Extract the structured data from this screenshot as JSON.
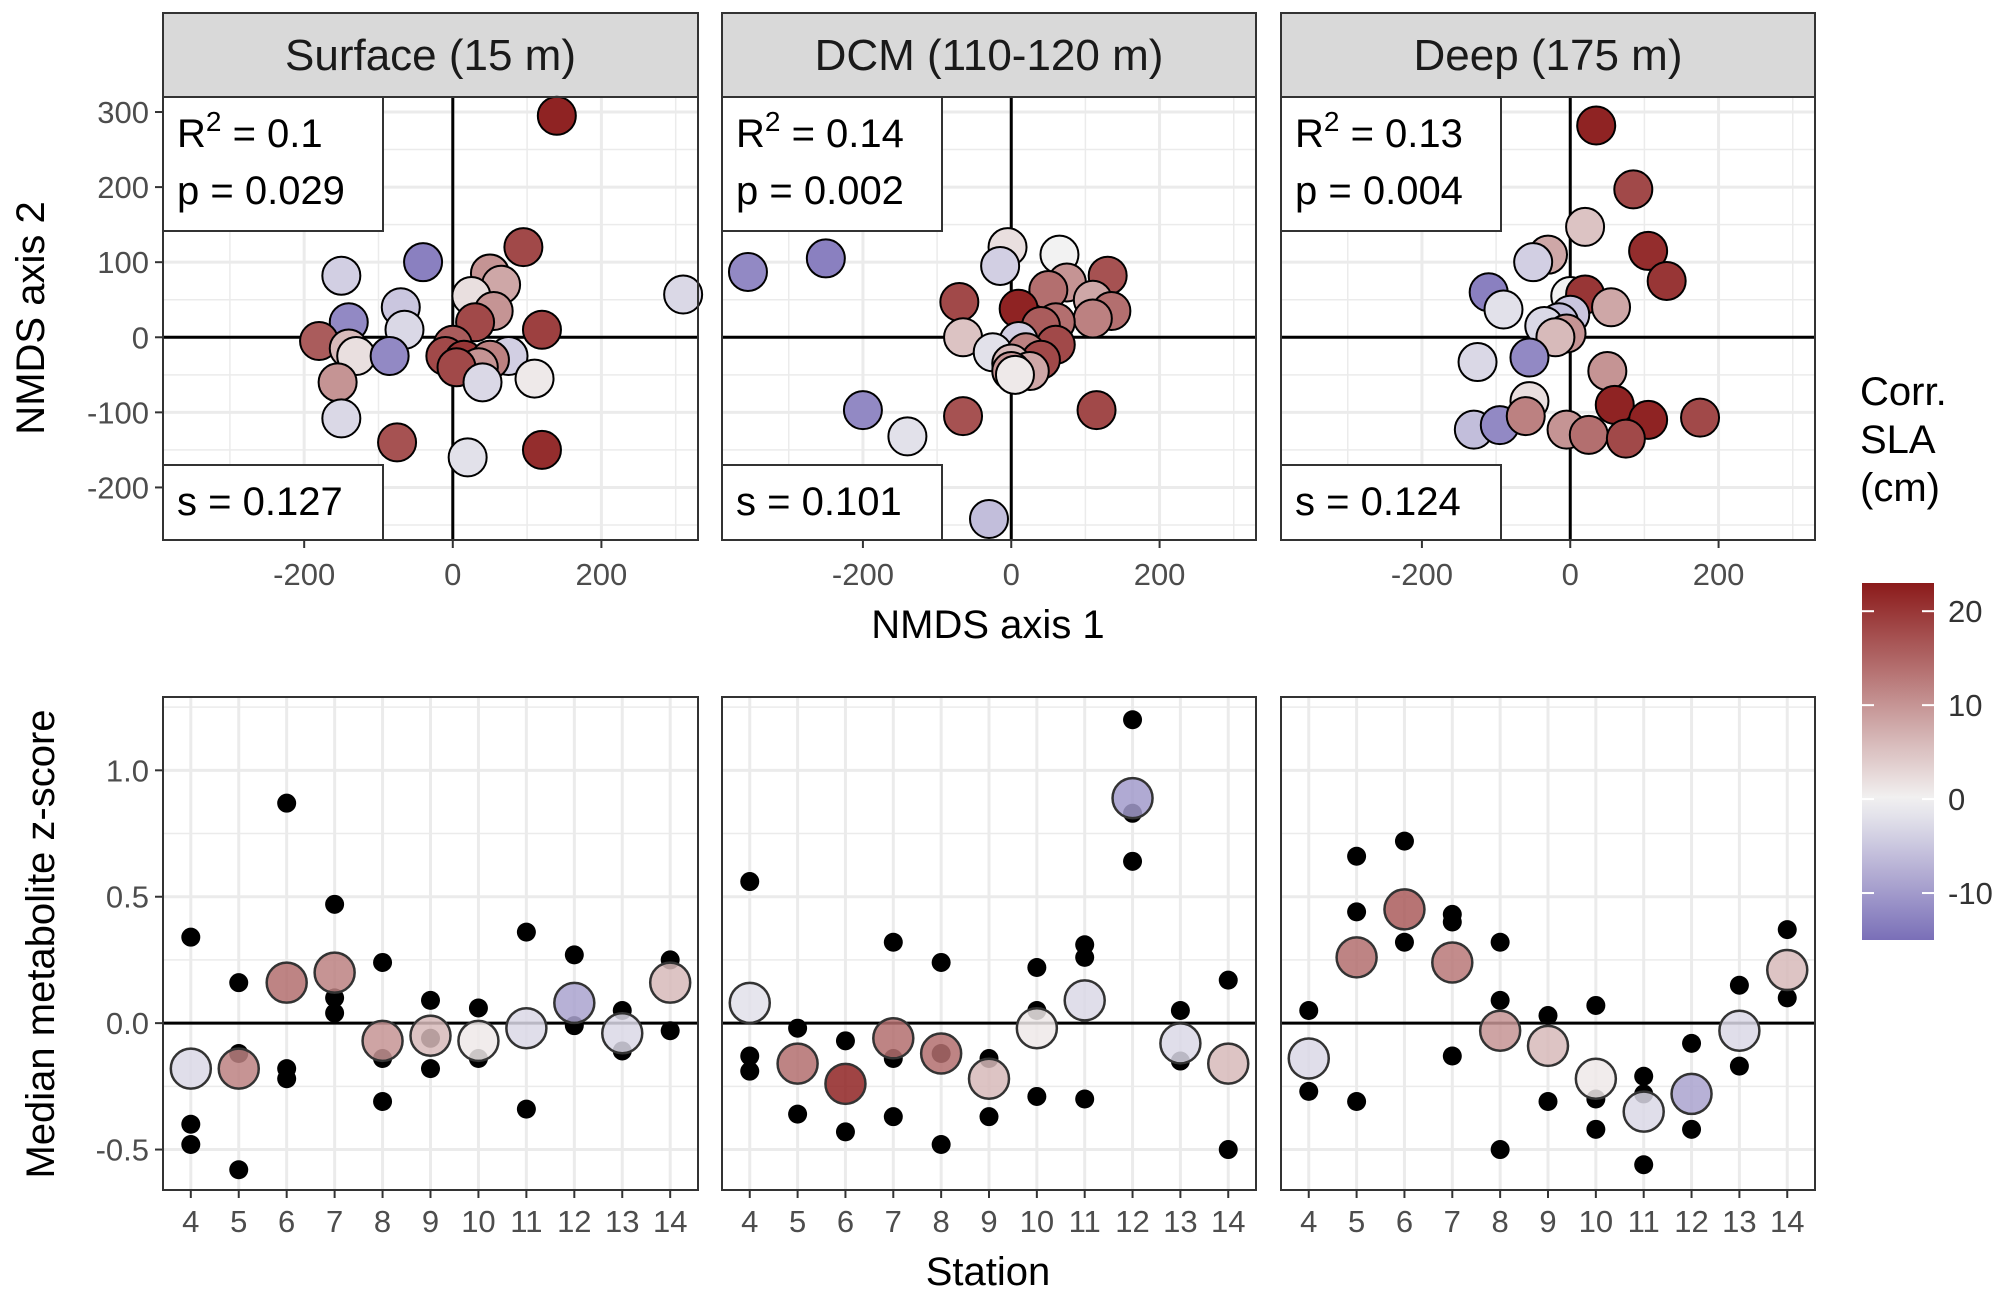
{
  "figure": {
    "legend": {
      "title_lines": [
        "Corr.",
        "SLA",
        "(cm)"
      ],
      "ticks": [
        20,
        10,
        0,
        -10
      ],
      "range": [
        -15,
        23
      ],
      "colors": {
        "low": "#7a6fb8",
        "mid": "#f2f2f2",
        "high": "#8b1a1a"
      }
    },
    "top_row": {
      "xlabel": "NMDS axis 1",
      "ylabel": "NMDS axis 2",
      "xlim": [
        -390,
        330
      ],
      "ylim": [
        -270,
        320
      ],
      "xticks": [
        -200,
        0,
        200
      ],
      "yticks": [
        300,
        200,
        100,
        0,
        -100,
        -200
      ]
    },
    "bottom_row": {
      "xlabel": "Station",
      "ylabel": "Median metabolite z-score",
      "ylim": [
        -0.66,
        1.29
      ],
      "yticks": [
        1.0,
        0.5,
        0.0,
        -0.5
      ],
      "ytick_labels": [
        "1.0",
        "0.5",
        "0.0",
        "-0.5"
      ],
      "stations": [
        4,
        5,
        6,
        7,
        8,
        9,
        10,
        11,
        12,
        13,
        14
      ]
    }
  },
  "chart_data": [
    {
      "type": "scatter",
      "panel": "top",
      "strip": "Surface  (15 m)",
      "stats": {
        "r2_prefix": "R",
        "r2_sup": "2",
        "r2_value": " = 0.1",
        "p": "p = 0.029",
        "s": "s = 0.127"
      },
      "points": [
        {
          "x": 140,
          "y": 295,
          "c": 22
        },
        {
          "x": -40,
          "y": 100,
          "c": -13
        },
        {
          "x": -150,
          "y": 82,
          "c": -4
        },
        {
          "x": 95,
          "y": 120,
          "c": 18
        },
        {
          "x": 310,
          "y": 57,
          "c": -3
        },
        {
          "x": -70,
          "y": 40,
          "c": -5
        },
        {
          "x": -140,
          "y": 20,
          "c": -12
        },
        {
          "x": -65,
          "y": 10,
          "c": -3
        },
        {
          "x": -180,
          "y": -5,
          "c": 16
        },
        {
          "x": -140,
          "y": -15,
          "c": 6
        },
        {
          "x": -130,
          "y": -25,
          "c": 2
        },
        {
          "x": -85,
          "y": -25,
          "c": -12
        },
        {
          "x": 50,
          "y": 85,
          "c": 10
        },
        {
          "x": 65,
          "y": 70,
          "c": 8
        },
        {
          "x": 25,
          "y": 55,
          "c": 2
        },
        {
          "x": 55,
          "y": 35,
          "c": 10
        },
        {
          "x": 30,
          "y": 20,
          "c": 18
        },
        {
          "x": 120,
          "y": 10,
          "c": 19
        },
        {
          "x": 0,
          "y": -10,
          "c": 16
        },
        {
          "x": -10,
          "y": -25,
          "c": 18
        },
        {
          "x": 15,
          "y": -30,
          "c": 20
        },
        {
          "x": 75,
          "y": -25,
          "c": -4
        },
        {
          "x": 50,
          "y": -30,
          "c": 12
        },
        {
          "x": 35,
          "y": -40,
          "c": 10
        },
        {
          "x": 5,
          "y": -40,
          "c": 18
        },
        {
          "x": 40,
          "y": -60,
          "c": -3
        },
        {
          "x": -155,
          "y": -60,
          "c": 10
        },
        {
          "x": 110,
          "y": -55,
          "c": 1
        },
        {
          "x": -150,
          "y": -108,
          "c": -3
        },
        {
          "x": -75,
          "y": -140,
          "c": 17
        },
        {
          "x": 120,
          "y": -150,
          "c": 21
        },
        {
          "x": 20,
          "y": -160,
          "c": -2
        }
      ]
    },
    {
      "type": "scatter",
      "panel": "top",
      "strip": "DCM  (110-120 m)",
      "stats": {
        "r2_prefix": "R",
        "r2_sup": "2",
        "r2_value": " = 0.14",
        "p": "p = 0.002",
        "s": "s = 0.101"
      },
      "points": [
        {
          "x": -355,
          "y": 87,
          "c": -12
        },
        {
          "x": -250,
          "y": 105,
          "c": -13
        },
        {
          "x": -5,
          "y": 120,
          "c": 2
        },
        {
          "x": 65,
          "y": 110,
          "c": 0
        },
        {
          "x": -15,
          "y": 95,
          "c": -4
        },
        {
          "x": 130,
          "y": 82,
          "c": 17
        },
        {
          "x": 75,
          "y": 73,
          "c": 10
        },
        {
          "x": 50,
          "y": 63,
          "c": 14
        },
        {
          "x": 110,
          "y": 50,
          "c": 8
        },
        {
          "x": -70,
          "y": 47,
          "c": 18
        },
        {
          "x": 10,
          "y": 38,
          "c": 22
        },
        {
          "x": 135,
          "y": 35,
          "c": 14
        },
        {
          "x": 110,
          "y": 25,
          "c": 12
        },
        {
          "x": 60,
          "y": 20,
          "c": 14
        },
        {
          "x": 40,
          "y": 15,
          "c": 16
        },
        {
          "x": -65,
          "y": 0,
          "c": 5
        },
        {
          "x": 10,
          "y": -5,
          "c": -4
        },
        {
          "x": 60,
          "y": -10,
          "c": 18
        },
        {
          "x": -25,
          "y": -20,
          "c": -2
        },
        {
          "x": 20,
          "y": -20,
          "c": 12
        },
        {
          "x": 40,
          "y": -30,
          "c": 18
        },
        {
          "x": 0,
          "y": -35,
          "c": 6
        },
        {
          "x": 25,
          "y": -45,
          "c": 8
        },
        {
          "x": 0,
          "y": -45,
          "c": 10
        },
        {
          "x": 5,
          "y": -50,
          "c": 1
        },
        {
          "x": -200,
          "y": -97,
          "c": -12
        },
        {
          "x": 115,
          "y": -97,
          "c": 18
        },
        {
          "x": -65,
          "y": -105,
          "c": 17
        },
        {
          "x": -140,
          "y": -132,
          "c": -2
        },
        {
          "x": -30,
          "y": -242,
          "c": -6
        }
      ]
    },
    {
      "type": "scatter",
      "panel": "top",
      "strip": "Deep  (175 m)",
      "stats": {
        "r2_prefix": "R",
        "r2_sup": "2",
        "r2_value": " = 0.13",
        "p": "p = 0.004",
        "s": "s = 0.124"
      },
      "points": [
        {
          "x": 35,
          "y": 282,
          "c": 22
        },
        {
          "x": 85,
          "y": 197,
          "c": 18
        },
        {
          "x": 20,
          "y": 147,
          "c": 5
        },
        {
          "x": 105,
          "y": 115,
          "c": 21
        },
        {
          "x": -30,
          "y": 110,
          "c": 8
        },
        {
          "x": -50,
          "y": 100,
          "c": -4
        },
        {
          "x": 130,
          "y": 75,
          "c": 20
        },
        {
          "x": -110,
          "y": 60,
          "c": -13
        },
        {
          "x": 0,
          "y": 55,
          "c": 0
        },
        {
          "x": 20,
          "y": 57,
          "c": 20
        },
        {
          "x": -90,
          "y": 37,
          "c": -2
        },
        {
          "x": 55,
          "y": 40,
          "c": 8
        },
        {
          "x": 0,
          "y": 30,
          "c": -5
        },
        {
          "x": -15,
          "y": 20,
          "c": -6
        },
        {
          "x": -35,
          "y": 15,
          "c": -3
        },
        {
          "x": -5,
          "y": 5,
          "c": 10
        },
        {
          "x": -20,
          "y": 0,
          "c": 6
        },
        {
          "x": -125,
          "y": -33,
          "c": -3
        },
        {
          "x": -55,
          "y": -27,
          "c": -12
        },
        {
          "x": 50,
          "y": -45,
          "c": 10
        },
        {
          "x": -55,
          "y": -85,
          "c": 2
        },
        {
          "x": 60,
          "y": -90,
          "c": 22
        },
        {
          "x": -130,
          "y": -123,
          "c": -6
        },
        {
          "x": -95,
          "y": -117,
          "c": -12
        },
        {
          "x": -60,
          "y": -105,
          "c": 12
        },
        {
          "x": 105,
          "y": -110,
          "c": 22
        },
        {
          "x": 175,
          "y": -107,
          "c": 18
        },
        {
          "x": -5,
          "y": -123,
          "c": 10
        },
        {
          "x": 25,
          "y": -130,
          "c": 14
        },
        {
          "x": 75,
          "y": -135,
          "c": 18
        }
      ]
    },
    {
      "type": "scatter",
      "panel": "bottom",
      "strip": "Surface  (15 m)",
      "medians": [
        {
          "station": 4,
          "y": -0.18,
          "c": -3
        },
        {
          "station": 5,
          "y": -0.18,
          "c": 12
        },
        {
          "station": 6,
          "y": 0.16,
          "c": 14
        },
        {
          "station": 7,
          "y": 0.2,
          "c": 12
        },
        {
          "station": 8,
          "y": -0.07,
          "c": 10
        },
        {
          "station": 9,
          "y": -0.05,
          "c": 6
        },
        {
          "station": 10,
          "y": -0.07,
          "c": 1
        },
        {
          "station": 11,
          "y": -0.02,
          "c": -3
        },
        {
          "station": 12,
          "y": 0.08,
          "c": -9
        },
        {
          "station": 13,
          "y": -0.04,
          "c": -3
        },
        {
          "station": 14,
          "y": 0.16,
          "c": 6
        }
      ],
      "replicates": [
        {
          "station": 4,
          "values": [
            0.34,
            -0.4,
            -0.48
          ]
        },
        {
          "station": 5,
          "values": [
            0.16,
            -0.12,
            -0.58
          ]
        },
        {
          "station": 6,
          "values": [
            0.87,
            -0.18,
            -0.22
          ]
        },
        {
          "station": 7,
          "values": [
            0.47,
            0.1,
            0.04
          ]
        },
        {
          "station": 8,
          "values": [
            0.24,
            -0.14,
            -0.31
          ]
        },
        {
          "station": 9,
          "values": [
            0.09,
            -0.06,
            -0.18
          ]
        },
        {
          "station": 10,
          "values": [
            0.06,
            -0.14
          ]
        },
        {
          "station": 11,
          "values": [
            0.36,
            -0.34
          ]
        },
        {
          "station": 12,
          "values": [
            0.27,
            -0.01
          ]
        },
        {
          "station": 13,
          "values": [
            0.05,
            -0.11
          ]
        },
        {
          "station": 14,
          "values": [
            0.25,
            -0.03
          ]
        }
      ]
    },
    {
      "type": "scatter",
      "panel": "bottom",
      "strip": "DCM  (110-120 m)",
      "medians": [
        {
          "station": 4,
          "y": 0.08,
          "c": -2
        },
        {
          "station": 5,
          "y": -0.16,
          "c": 14
        },
        {
          "station": 6,
          "y": -0.24,
          "c": 22
        },
        {
          "station": 7,
          "y": -0.06,
          "c": 14
        },
        {
          "station": 8,
          "y": -0.12,
          "c": 14
        },
        {
          "station": 9,
          "y": -0.22,
          "c": 6
        },
        {
          "station": 10,
          "y": -0.02,
          "c": 1
        },
        {
          "station": 11,
          "y": 0.09,
          "c": -3
        },
        {
          "station": 12,
          "y": 0.89,
          "c": -10
        },
        {
          "station": 13,
          "y": -0.08,
          "c": -3
        },
        {
          "station": 14,
          "y": -0.16,
          "c": 6
        }
      ],
      "replicates": [
        {
          "station": 4,
          "values": [
            0.56,
            -0.13,
            -0.19
          ]
        },
        {
          "station": 5,
          "values": [
            -0.02,
            -0.36
          ]
        },
        {
          "station": 6,
          "values": [
            -0.07,
            -0.43
          ]
        },
        {
          "station": 7,
          "values": [
            0.32,
            -0.14,
            -0.37
          ]
        },
        {
          "station": 8,
          "values": [
            0.24,
            -0.12,
            -0.48
          ]
        },
        {
          "station": 9,
          "values": [
            -0.14,
            -0.37
          ]
        },
        {
          "station": 10,
          "values": [
            0.22,
            0.05,
            -0.29
          ]
        },
        {
          "station": 11,
          "values": [
            0.31,
            0.26,
            -0.3
          ]
        },
        {
          "station": 12,
          "values": [
            1.2,
            0.83,
            0.64
          ]
        },
        {
          "station": 13,
          "values": [
            0.05,
            -0.15
          ]
        },
        {
          "station": 14,
          "values": [
            0.17,
            -0.5
          ]
        }
      ]
    },
    {
      "type": "scatter",
      "panel": "bottom",
      "strip": "Deep  (175 m)",
      "medians": [
        {
          "station": 4,
          "y": -0.14,
          "c": -3
        },
        {
          "station": 5,
          "y": 0.26,
          "c": 14
        },
        {
          "station": 6,
          "y": 0.45,
          "c": 16
        },
        {
          "station": 7,
          "y": 0.24,
          "c": 13
        },
        {
          "station": 8,
          "y": -0.03,
          "c": 10
        },
        {
          "station": 9,
          "y": -0.09,
          "c": 6
        },
        {
          "station": 10,
          "y": -0.22,
          "c": 1
        },
        {
          "station": 11,
          "y": -0.35,
          "c": -3
        },
        {
          "station": 12,
          "y": -0.28,
          "c": -9
        },
        {
          "station": 13,
          "y": -0.03,
          "c": -3
        },
        {
          "station": 14,
          "y": 0.21,
          "c": 6
        }
      ],
      "replicates": [
        {
          "station": 4,
          "values": [
            0.05,
            -0.27
          ]
        },
        {
          "station": 5,
          "values": [
            0.66,
            0.44,
            -0.31
          ]
        },
        {
          "station": 6,
          "values": [
            0.72,
            0.32
          ]
        },
        {
          "station": 7,
          "values": [
            0.43,
            0.4,
            -0.13
          ]
        },
        {
          "station": 8,
          "values": [
            0.32,
            0.09,
            -0.5
          ]
        },
        {
          "station": 9,
          "values": [
            0.03,
            -0.31
          ]
        },
        {
          "station": 10,
          "values": [
            0.07,
            -0.3,
            -0.42
          ]
        },
        {
          "station": 11,
          "values": [
            -0.21,
            -0.28,
            -0.56
          ]
        },
        {
          "station": 12,
          "values": [
            -0.08,
            -0.42
          ]
        },
        {
          "station": 13,
          "values": [
            0.15,
            -0.17
          ]
        },
        {
          "station": 14,
          "values": [
            0.37,
            0.1
          ]
        }
      ]
    }
  ]
}
